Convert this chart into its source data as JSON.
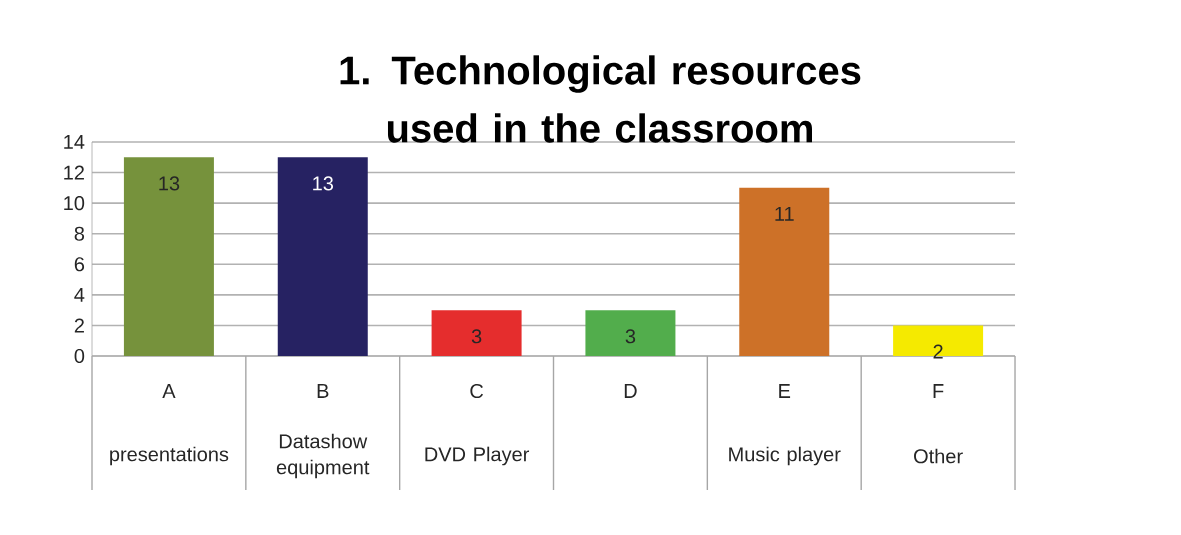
{
  "chart_data": {
    "type": "bar",
    "title": "1. Technological resources used in the classroom",
    "categories": [
      "presentations",
      "Datashow equipment",
      "DVD Player",
      null,
      "Music player",
      "Other"
    ],
    "values": [
      13,
      13,
      3,
      3,
      11,
      2
    ],
    "colors": [
      "#76923c",
      "#262262",
      "#e52d2d",
      "#52ad4c",
      "#cd7128",
      "#f5ea00"
    ],
    "ylim": [
      0,
      14
    ],
    "yticks": [
      0,
      2,
      4,
      6,
      8,
      10,
      12,
      14
    ],
    "grid": "y",
    "data_labels": true,
    "annotations": [
      "A",
      "B",
      "C",
      "D",
      "E",
      "F"
    ]
  }
}
